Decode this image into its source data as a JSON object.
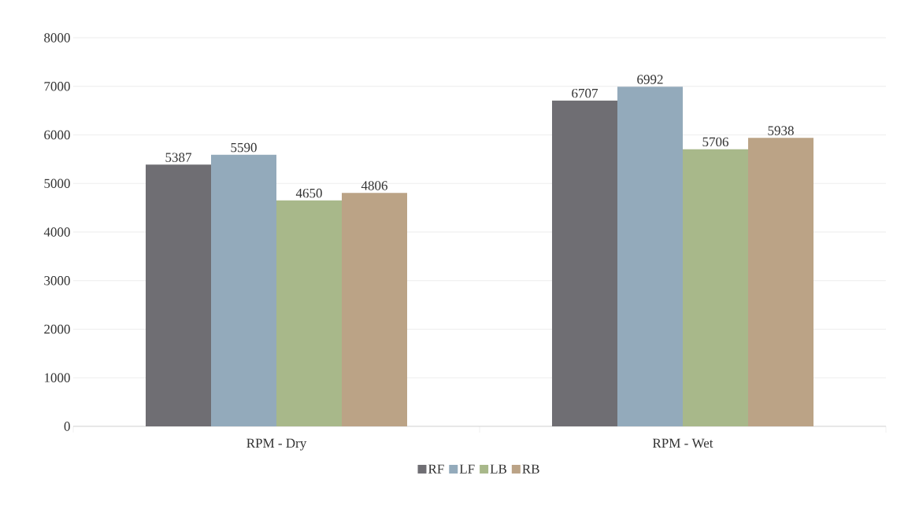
{
  "chart_data": {
    "type": "bar",
    "categories": [
      "RPM - Dry",
      "RPM - Wet"
    ],
    "series": [
      {
        "name": "RF",
        "color": "#6f6e73",
        "values": [
          5387,
          6707
        ]
      },
      {
        "name": "LF",
        "color": "#93aabb",
        "values": [
          5590,
          6992
        ]
      },
      {
        "name": "LB",
        "color": "#a8b88a",
        "values": [
          4650,
          5706
        ]
      },
      {
        "name": "RB",
        "color": "#bba386",
        "values": [
          4806,
          5938
        ]
      }
    ],
    "ylim": [
      0,
      8000
    ],
    "yticks": [
      0,
      1000,
      2000,
      3000,
      4000,
      5000,
      6000,
      7000,
      8000
    ],
    "grid": "y",
    "legend": "bottom",
    "data_labels": true
  }
}
